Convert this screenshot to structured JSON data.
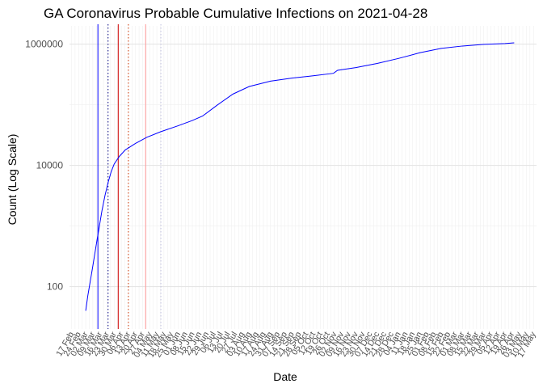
{
  "chart_data": {
    "type": "line",
    "title": "GA Coronavirus Probable Cumulative Infections on 2021-04-28",
    "xlabel": "Date",
    "ylabel": "Count (Log Scale)",
    "y_scale": "log10",
    "ylim": [
      20,
      2000000
    ],
    "xlim": [
      "2020-02-15",
      "2021-05-20"
    ],
    "grid": true,
    "legend": "none",
    "y_ticks": [
      {
        "value": 100,
        "label": "100"
      },
      {
        "value": 10000,
        "label": "10000"
      },
      {
        "value": 1000000,
        "label": "1000000"
      }
    ],
    "x_tick_labels": [
      {
        "date": "2020-02-17",
        "label": "17 Feb"
      },
      {
        "date": "2020-02-24",
        "label": "24 Feb"
      },
      {
        "date": "2020-03-02",
        "label": "02 Mar"
      },
      {
        "date": "2020-03-09",
        "label": "09 Mar"
      },
      {
        "date": "2020-03-16",
        "label": "16 Mar"
      },
      {
        "date": "2020-03-23",
        "label": "23 Mar"
      },
      {
        "date": "2020-03-30",
        "label": "30 Mar"
      },
      {
        "date": "2020-04-06",
        "label": "06 Apr"
      },
      {
        "date": "2020-04-13",
        "label": "13 Apr"
      },
      {
        "date": "2020-04-20",
        "label": "20 Apr"
      },
      {
        "date": "2020-04-27",
        "label": "27 Apr"
      },
      {
        "date": "2020-05-04",
        "label": "04 May"
      },
      {
        "date": "2020-05-11",
        "label": "11 May"
      },
      {
        "date": "2020-05-18",
        "label": "18 May"
      },
      {
        "date": "2020-05-25",
        "label": "25 May"
      },
      {
        "date": "2020-06-01",
        "label": "01 Jun"
      },
      {
        "date": "2020-06-08",
        "label": "08 Jun"
      },
      {
        "date": "2020-06-15",
        "label": "15 Jun"
      },
      {
        "date": "2020-06-22",
        "label": "22 Jun"
      },
      {
        "date": "2020-06-29",
        "label": "29 Jun"
      },
      {
        "date": "2020-07-06",
        "label": "06 Jul"
      },
      {
        "date": "2020-07-13",
        "label": "13 Jul"
      },
      {
        "date": "2020-07-20",
        "label": "20 Jul"
      },
      {
        "date": "2020-07-27",
        "label": "27 Jul"
      },
      {
        "date": "2020-08-03",
        "label": "03 Aug"
      },
      {
        "date": "2020-08-10",
        "label": "10 Aug"
      },
      {
        "date": "2020-08-17",
        "label": "17 Aug"
      },
      {
        "date": "2020-08-24",
        "label": "24 Aug"
      },
      {
        "date": "2020-08-31",
        "label": "31 Aug"
      },
      {
        "date": "2020-09-07",
        "label": "07 Sep"
      },
      {
        "date": "2020-09-14",
        "label": "14 Sep"
      },
      {
        "date": "2020-09-21",
        "label": "21 Sep"
      },
      {
        "date": "2020-09-28",
        "label": "28 Sep"
      },
      {
        "date": "2020-10-05",
        "label": "05 Oct"
      },
      {
        "date": "2020-10-12",
        "label": "12 Oct"
      },
      {
        "date": "2020-10-19",
        "label": "19 Oct"
      },
      {
        "date": "2020-10-26",
        "label": "26 Oct"
      },
      {
        "date": "2020-11-02",
        "label": "02 Nov"
      },
      {
        "date": "2020-11-09",
        "label": "09 Nov"
      },
      {
        "date": "2020-11-16",
        "label": "16 Nov"
      },
      {
        "date": "2020-11-23",
        "label": "23 Nov"
      },
      {
        "date": "2020-11-30",
        "label": "30 Nov"
      },
      {
        "date": "2020-12-07",
        "label": "07 Dec"
      },
      {
        "date": "2020-12-14",
        "label": "14 Dec"
      },
      {
        "date": "2020-12-21",
        "label": "21 Dec"
      },
      {
        "date": "2020-12-28",
        "label": "28 Dec"
      },
      {
        "date": "2021-01-04",
        "label": "04 Jan"
      },
      {
        "date": "2021-01-11",
        "label": "11 Jan"
      },
      {
        "date": "2021-01-18",
        "label": "18 Jan"
      },
      {
        "date": "2021-01-25",
        "label": "25 Jan"
      },
      {
        "date": "2021-02-01",
        "label": "01 Feb"
      },
      {
        "date": "2021-02-08",
        "label": "08 Feb"
      },
      {
        "date": "2021-02-15",
        "label": "15 Feb"
      },
      {
        "date": "2021-02-22",
        "label": "22 Feb"
      },
      {
        "date": "2021-03-01",
        "label": "01 Mar"
      },
      {
        "date": "2021-03-08",
        "label": "08 Mar"
      },
      {
        "date": "2021-03-15",
        "label": "15 Mar"
      },
      {
        "date": "2021-03-22",
        "label": "22 Mar"
      },
      {
        "date": "2021-03-29",
        "label": "29 Mar"
      },
      {
        "date": "2021-04-05",
        "label": "05 Apr"
      },
      {
        "date": "2021-04-12",
        "label": "12 Apr"
      },
      {
        "date": "2021-04-19",
        "label": "19 Apr"
      },
      {
        "date": "2021-04-26",
        "label": "26 Apr"
      },
      {
        "date": "2021-05-03",
        "label": "03 May"
      },
      {
        "date": "2021-05-10",
        "label": "10 May"
      },
      {
        "date": "2021-05-17",
        "label": "17 May"
      }
    ],
    "series": [
      {
        "color": "#0000ff",
        "points": [
          [
            "2020-03-02",
            40
          ],
          [
            "2020-03-04",
            70
          ],
          [
            "2020-03-06",
            110
          ],
          [
            "2020-03-09",
            220
          ],
          [
            "2020-03-12",
            450
          ],
          [
            "2020-03-15",
            900
          ],
          [
            "2020-03-18",
            1800
          ],
          [
            "2020-03-21",
            3200
          ],
          [
            "2020-03-24",
            5200
          ],
          [
            "2020-03-27",
            7800
          ],
          [
            "2020-03-30",
            10500
          ],
          [
            "2020-04-04",
            14000
          ],
          [
            "2020-04-10",
            18000
          ],
          [
            "2020-04-20",
            23000
          ],
          [
            "2020-05-01",
            29000
          ],
          [
            "2020-05-15",
            36000
          ],
          [
            "2020-06-01",
            45000
          ],
          [
            "2020-06-15",
            55000
          ],
          [
            "2020-06-25",
            65000
          ],
          [
            "2020-07-10",
            100000
          ],
          [
            "2020-07-25",
            150000
          ],
          [
            "2020-08-10",
            200000
          ],
          [
            "2020-08-31",
            245000
          ],
          [
            "2020-09-21",
            275000
          ],
          [
            "2020-10-12",
            300000
          ],
          [
            "2020-11-01",
            330000
          ],
          [
            "2020-11-05",
            370000
          ],
          [
            "2020-11-23",
            410000
          ],
          [
            "2020-12-14",
            480000
          ],
          [
            "2021-01-04",
            580000
          ],
          [
            "2021-01-25",
            720000
          ],
          [
            "2021-02-15",
            850000
          ],
          [
            "2021-03-08",
            930000
          ],
          [
            "2021-03-29",
            990000
          ],
          [
            "2021-04-19",
            1020000
          ],
          [
            "2021-04-28",
            1050000
          ]
        ]
      }
    ],
    "vertical_lines": [
      {
        "date": "2020-03-14",
        "color": "#0000ff",
        "style": "solid"
      },
      {
        "date": "2020-03-24",
        "color": "#000080",
        "style": "dotted"
      },
      {
        "date": "2020-04-03",
        "color": "#cc0000",
        "style": "solid"
      },
      {
        "date": "2020-04-13",
        "color": "#cc3300",
        "style": "dotted"
      },
      {
        "date": "2020-04-30",
        "color": "#ff9999",
        "style": "solid"
      },
      {
        "date": "2020-05-15",
        "color": "#c0c0e0",
        "style": "dotted"
      }
    ]
  }
}
